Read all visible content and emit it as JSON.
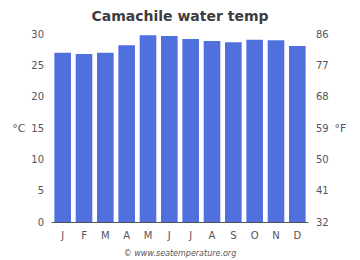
{
  "chart_data": {
    "type": "bar",
    "title": "Camachile water temp",
    "categories": [
      "J",
      "F",
      "M",
      "A",
      "M",
      "J",
      "J",
      "A",
      "S",
      "O",
      "N",
      "D"
    ],
    "values": [
      27.0,
      26.8,
      27.0,
      28.2,
      29.8,
      29.7,
      29.2,
      28.9,
      28.7,
      29.1,
      29.0,
      28.1
    ],
    "ylabel": "°C",
    "ylim": [
      0,
      30
    ],
    "yticks": [
      0,
      5,
      10,
      15,
      20,
      25,
      30
    ],
    "y2label": "°F",
    "y2lim": [
      32,
      86
    ],
    "y2ticks": [
      32,
      41,
      50,
      59,
      68,
      77,
      86
    ],
    "annotations": [
      "© www.seatemperature.org"
    ],
    "grid": false
  }
}
